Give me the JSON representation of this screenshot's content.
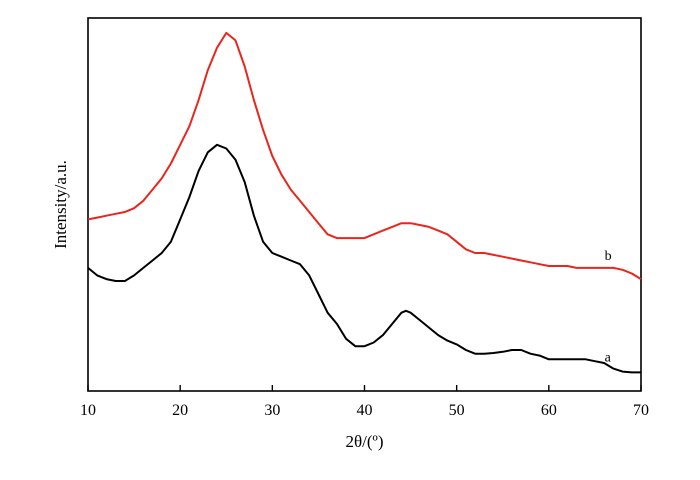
{
  "chart_data": {
    "type": "line",
    "xlabel": "2θ/(º)",
    "ylabel": "Intensity/a.u.",
    "xlim": [
      10,
      70
    ],
    "ylim": [
      0,
      100
    ],
    "x_ticks": [
      10,
      20,
      30,
      40,
      50,
      60,
      70
    ],
    "grid": false,
    "legend": "none",
    "series": [
      {
        "name": "a",
        "color": "#000000",
        "points": [
          [
            10,
            33
          ],
          [
            11,
            31
          ],
          [
            12,
            30
          ],
          [
            13,
            29.5
          ],
          [
            14,
            29.5
          ],
          [
            15,
            31
          ],
          [
            16,
            33
          ],
          [
            17,
            35
          ],
          [
            18,
            37
          ],
          [
            19,
            40
          ],
          [
            20,
            46
          ],
          [
            21,
            52
          ],
          [
            22,
            59
          ],
          [
            23,
            64
          ],
          [
            24,
            66
          ],
          [
            25,
            65
          ],
          [
            26,
            62
          ],
          [
            27,
            56
          ],
          [
            28,
            47
          ],
          [
            29,
            40
          ],
          [
            30,
            37
          ],
          [
            31,
            36
          ],
          [
            32,
            35
          ],
          [
            33,
            34
          ],
          [
            34,
            31
          ],
          [
            35,
            26
          ],
          [
            36,
            21
          ],
          [
            37,
            18
          ],
          [
            38,
            14
          ],
          [
            39,
            12
          ],
          [
            40,
            12
          ],
          [
            41,
            13
          ],
          [
            42,
            15
          ],
          [
            43,
            18
          ],
          [
            44,
            21
          ],
          [
            44.5,
            21.5
          ],
          [
            45,
            21
          ],
          [
            46,
            19
          ],
          [
            47,
            17
          ],
          [
            48,
            15
          ],
          [
            49,
            13.5
          ],
          [
            50,
            12.5
          ],
          [
            51,
            11
          ],
          [
            52,
            10
          ],
          [
            53,
            10
          ],
          [
            54,
            10.2
          ],
          [
            55,
            10.5
          ],
          [
            56,
            11
          ],
          [
            57,
            11
          ],
          [
            58,
            10
          ],
          [
            59,
            9.5
          ],
          [
            60,
            8.5
          ],
          [
            61,
            8.5
          ],
          [
            62,
            8.5
          ],
          [
            63,
            8.5
          ],
          [
            64,
            8.5
          ],
          [
            65,
            8
          ],
          [
            66,
            7.5
          ],
          [
            67,
            6
          ],
          [
            68,
            5.2
          ],
          [
            69,
            5
          ],
          [
            70,
            5
          ]
        ]
      },
      {
        "name": "b",
        "color": "#e8261e",
        "points": [
          [
            10,
            46
          ],
          [
            11,
            46.5
          ],
          [
            12,
            47
          ],
          [
            13,
            47.5
          ],
          [
            14,
            48
          ],
          [
            15,
            49
          ],
          [
            16,
            51
          ],
          [
            17,
            54
          ],
          [
            18,
            57
          ],
          [
            19,
            61
          ],
          [
            20,
            66
          ],
          [
            21,
            71
          ],
          [
            22,
            78
          ],
          [
            23,
            86
          ],
          [
            24,
            92
          ],
          [
            25,
            96
          ],
          [
            26,
            94
          ],
          [
            27,
            87
          ],
          [
            28,
            78
          ],
          [
            29,
            70
          ],
          [
            30,
            63
          ],
          [
            31,
            58
          ],
          [
            32,
            54
          ],
          [
            33,
            51
          ],
          [
            34,
            48
          ],
          [
            35,
            45
          ],
          [
            36,
            42
          ],
          [
            37,
            41
          ],
          [
            38,
            41
          ],
          [
            39,
            41
          ],
          [
            40,
            41
          ],
          [
            41,
            42
          ],
          [
            42,
            43
          ],
          [
            43,
            44
          ],
          [
            44,
            45
          ],
          [
            45,
            45
          ],
          [
            46,
            44.5
          ],
          [
            47,
            44
          ],
          [
            48,
            43
          ],
          [
            49,
            42
          ],
          [
            50,
            40
          ],
          [
            51,
            38
          ],
          [
            52,
            37
          ],
          [
            53,
            37
          ],
          [
            54,
            36.5
          ],
          [
            55,
            36
          ],
          [
            56,
            35.5
          ],
          [
            57,
            35
          ],
          [
            58,
            34.5
          ],
          [
            59,
            34
          ],
          [
            60,
            33.5
          ],
          [
            61,
            33.5
          ],
          [
            62,
            33.5
          ],
          [
            63,
            33
          ],
          [
            64,
            33
          ],
          [
            65,
            33
          ],
          [
            66,
            33
          ],
          [
            67,
            33
          ],
          [
            68,
            32.5
          ],
          [
            69,
            31.5
          ],
          [
            70,
            30
          ]
        ]
      }
    ]
  }
}
